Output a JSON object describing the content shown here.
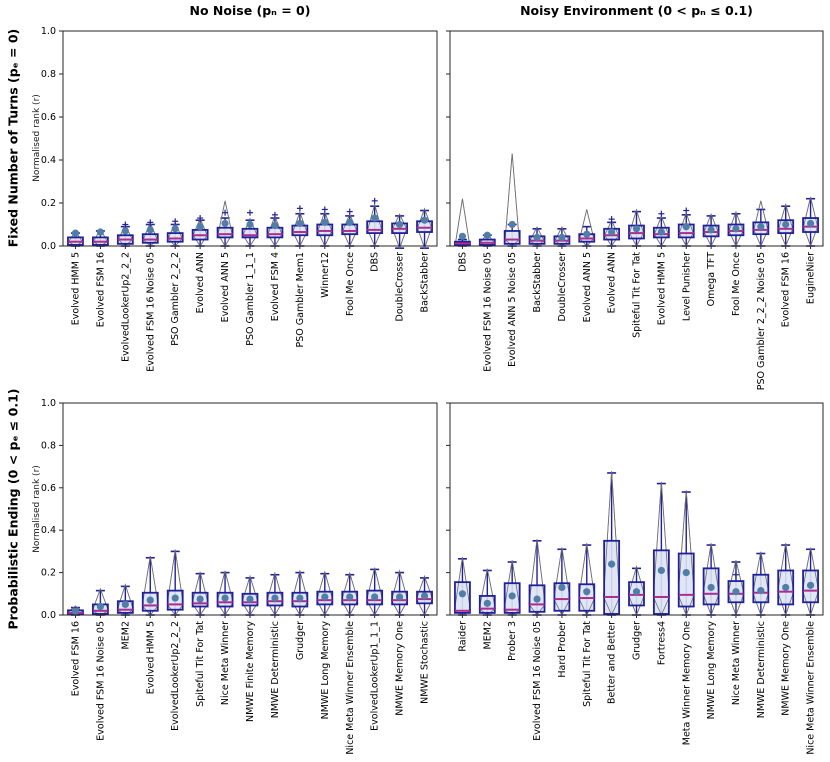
{
  "figure": {
    "column_titles": [
      "No Noise (pₙ = 0)",
      "Noisy Environment (0 < pₙ ≤ 0.1)"
    ],
    "row_titles": [
      "Fixed Number of Turns (pₑ = 0)",
      "Probabilistic Ending (0 < pₑ ≤ 0.1)"
    ],
    "ylabel": "Normalised rank (r)",
    "yticks": [
      "0.0",
      "0.2",
      "0.4",
      "0.6",
      "0.8",
      "1.0"
    ],
    "ylim": [
      0,
      1
    ]
  },
  "colors": {
    "box_edge": "#20209b",
    "box_fill": "#dde3f3",
    "median": "#ad2c8f",
    "mean_dot": "#517ea8",
    "violin_edge": "#707070",
    "violin_fill": "#fbfcff",
    "axis": "#262626",
    "text": "#000000"
  },
  "chart_data": [
    {
      "type": "box",
      "panel": "top-left",
      "column": "No Noise (pₙ = 0)",
      "row": "Fixed Number of Turns (pₑ = 0)",
      "ylim": [
        0,
        1
      ],
      "stats": [
        {
          "label": "Evolved HMM 5",
          "wlo": 0,
          "q1": 0.005,
          "med": 0.02,
          "q3": 0.04,
          "whi": 0.06,
          "mean": 0.06,
          "fliers": []
        },
        {
          "label": "Evolved FSM 16",
          "wlo": 0,
          "q1": 0.005,
          "med": 0.02,
          "q3": 0.04,
          "whi": 0.07,
          "mean": 0.065,
          "fliers": []
        },
        {
          "label": "EvolvedLookerUp2_2_2",
          "wlo": 0,
          "q1": 0.01,
          "med": 0.03,
          "q3": 0.05,
          "whi": 0.09,
          "mean": 0.07,
          "fliers": [
            0.1
          ]
        },
        {
          "label": "Evolved FSM 16 Noise 05",
          "wlo": 0,
          "q1": 0.015,
          "med": 0.03,
          "q3": 0.055,
          "whi": 0.1,
          "mean": 0.075,
          "fliers": [
            0.11
          ]
        },
        {
          "label": "PSO Gambler 2_2_2",
          "wlo": 0,
          "q1": 0.02,
          "med": 0.035,
          "q3": 0.06,
          "whi": 0.1,
          "mean": 0.08,
          "fliers": [
            0.115
          ]
        },
        {
          "label": "Evolved ANN",
          "wlo": 0,
          "q1": 0.03,
          "med": 0.05,
          "q3": 0.075,
          "whi": 0.12,
          "mean": 0.09,
          "fliers": [
            0.13
          ]
        },
        {
          "label": "Evolved ANN 5",
          "wlo": 0,
          "q1": 0.04,
          "med": 0.055,
          "q3": 0.085,
          "whi": 0.13,
          "mean": 0.105,
          "fliers": [
            0.155
          ],
          "spike": 0.21
        },
        {
          "label": "PSO Gambler 1_1_1",
          "wlo": 0,
          "q1": 0.04,
          "med": 0.05,
          "q3": 0.08,
          "whi": 0.12,
          "mean": 0.1,
          "fliers": [
            0.155
          ]
        },
        {
          "label": "Evolved FSM 4",
          "wlo": 0,
          "q1": 0.04,
          "med": 0.055,
          "q3": 0.085,
          "whi": 0.13,
          "mean": 0.095,
          "fliers": [
            0.145
          ]
        },
        {
          "label": "PSO Gambler Mem1",
          "wlo": 0,
          "q1": 0.05,
          "med": 0.065,
          "q3": 0.095,
          "whi": 0.15,
          "mean": 0.105,
          "fliers": [
            0.175
          ]
        },
        {
          "label": "Winner12",
          "wlo": 0,
          "q1": 0.05,
          "med": 0.07,
          "q3": 0.1,
          "whi": 0.15,
          "mean": 0.11,
          "fliers": [
            0.17
          ]
        },
        {
          "label": "Fool Me Once",
          "wlo": 0,
          "q1": 0.055,
          "med": 0.07,
          "q3": 0.1,
          "whi": 0.14,
          "mean": 0.11,
          "fliers": [
            0.16
          ]
        },
        {
          "label": "DBS",
          "wlo": 0,
          "q1": 0.06,
          "med": 0.075,
          "q3": 0.115,
          "whi": 0.185,
          "mean": 0.13,
          "fliers": [
            0.21
          ]
        },
        {
          "label": "DoubleCrosser",
          "wlo": -0.01,
          "q1": 0.06,
          "med": 0.08,
          "q3": 0.105,
          "whi": 0.14,
          "mean": 0.1,
          "fliers": []
        },
        {
          "label": "BackStabber",
          "wlo": -0.01,
          "q1": 0.065,
          "med": 0.085,
          "q3": 0.115,
          "whi": 0.165,
          "mean": 0.12,
          "fliers": []
        }
      ]
    },
    {
      "type": "box",
      "panel": "top-right",
      "column": "Noisy Environment (0 < pₙ ≤ 0.1)",
      "row": "Fixed Number of Turns (pₑ = 0)",
      "ylim": [
        0,
        1
      ],
      "stats": [
        {
          "label": "DBS",
          "wlo": 0,
          "q1": 0.005,
          "med": 0.012,
          "q3": 0.02,
          "whi": 0.03,
          "mean": 0.045,
          "fliers": [],
          "spike": 0.22
        },
        {
          "label": "Evolved FSM 16 Noise 05",
          "wlo": 0,
          "q1": 0.005,
          "med": 0.015,
          "q3": 0.03,
          "whi": 0.05,
          "mean": 0.05,
          "fliers": []
        },
        {
          "label": "Evolved ANN 5 Noise 05",
          "wlo": 0,
          "q1": 0.01,
          "med": 0.03,
          "q3": 0.07,
          "whi": 0.1,
          "mean": 0.1,
          "fliers": [],
          "spike": 0.43
        },
        {
          "label": "BackStabber",
          "wlo": 0,
          "q1": 0.01,
          "med": 0.025,
          "q3": 0.045,
          "whi": 0.08,
          "mean": 0.04,
          "fliers": []
        },
        {
          "label": "DoubleCrosser",
          "wlo": 0,
          "q1": 0.01,
          "med": 0.025,
          "q3": 0.045,
          "whi": 0.08,
          "mean": 0.04,
          "fliers": []
        },
        {
          "label": "Evolved ANN 5",
          "wlo": 0,
          "q1": 0.02,
          "med": 0.035,
          "q3": 0.055,
          "whi": 0.09,
          "mean": 0.055,
          "fliers": [],
          "spike": 0.17
        },
        {
          "label": "Evolved ANN",
          "wlo": 0,
          "q1": 0.03,
          "med": 0.05,
          "q3": 0.08,
          "whi": 0.11,
          "mean": 0.065,
          "fliers": [
            0.125
          ]
        },
        {
          "label": "Spiteful Tit For Tat",
          "wlo": 0,
          "q1": 0.035,
          "med": 0.06,
          "q3": 0.095,
          "whi": 0.16,
          "mean": 0.08,
          "fliers": []
        },
        {
          "label": "Evolved HMM 5",
          "wlo": 0,
          "q1": 0.04,
          "med": 0.055,
          "q3": 0.085,
          "whi": 0.13,
          "mean": 0.065,
          "fliers": [
            0.15
          ]
        },
        {
          "label": "Level Punisher",
          "wlo": 0,
          "q1": 0.04,
          "med": 0.06,
          "q3": 0.1,
          "whi": 0.145,
          "mean": 0.09,
          "fliers": [
            0.165
          ]
        },
        {
          "label": "Omega TFT",
          "wlo": 0,
          "q1": 0.045,
          "med": 0.065,
          "q3": 0.095,
          "whi": 0.14,
          "mean": 0.075,
          "fliers": []
        },
        {
          "label": "Fool Me Once",
          "wlo": 0,
          "q1": 0.05,
          "med": 0.07,
          "q3": 0.1,
          "whi": 0.15,
          "mean": 0.08,
          "fliers": []
        },
        {
          "label": "PSO Gambler 2_2_2 Noise 05",
          "wlo": 0,
          "q1": 0.055,
          "med": 0.075,
          "q3": 0.11,
          "whi": 0.17,
          "mean": 0.09,
          "fliers": [],
          "spike": 0.21
        },
        {
          "label": "Evolved FSM 16",
          "wlo": 0,
          "q1": 0.06,
          "med": 0.08,
          "q3": 0.12,
          "whi": 0.185,
          "mean": 0.1,
          "fliers": []
        },
        {
          "label": "EugineNier",
          "wlo": 0,
          "q1": 0.065,
          "med": 0.09,
          "q3": 0.13,
          "whi": 0.22,
          "mean": 0.105,
          "fliers": []
        }
      ]
    },
    {
      "type": "box",
      "panel": "bottom-left",
      "column": "No Noise (pₙ = 0)",
      "row": "Probabilistic Ending (0 < pₑ ≤ 0.1)",
      "ylim": [
        0,
        1
      ],
      "stats": [
        {
          "label": "Evolved FSM 16",
          "wlo": 0,
          "q1": 0.002,
          "med": 0.01,
          "q3": 0.022,
          "whi": 0.035,
          "mean": 0.018,
          "fliers": []
        },
        {
          "label": "Evolved FSM 16 Noise 05",
          "wlo": 0,
          "q1": 0.005,
          "med": 0.02,
          "q3": 0.05,
          "whi": 0.115,
          "mean": 0.04,
          "fliers": []
        },
        {
          "label": "MEM2",
          "wlo": 0,
          "q1": 0.01,
          "med": 0.025,
          "q3": 0.065,
          "whi": 0.135,
          "mean": 0.05,
          "fliers": []
        },
        {
          "label": "Evolved HMM 5",
          "wlo": 0,
          "q1": 0.02,
          "med": 0.045,
          "q3": 0.105,
          "whi": 0.27,
          "mean": 0.07,
          "fliers": []
        },
        {
          "label": "EvolvedLookerUp2_2_2",
          "wlo": 0,
          "q1": 0.025,
          "med": 0.05,
          "q3": 0.115,
          "whi": 0.3,
          "mean": 0.08,
          "fliers": []
        },
        {
          "label": "Spiteful Tit For Tat",
          "wlo": 0,
          "q1": 0.04,
          "med": 0.055,
          "q3": 0.105,
          "whi": 0.195,
          "mean": 0.075,
          "fliers": []
        },
        {
          "label": "Nice Meta Winner",
          "wlo": 0,
          "q1": 0.04,
          "med": 0.06,
          "q3": 0.105,
          "whi": 0.2,
          "mean": 0.08,
          "fliers": []
        },
        {
          "label": "NMWE Finite Memory",
          "wlo": 0,
          "q1": 0.045,
          "med": 0.06,
          "q3": 0.1,
          "whi": 0.175,
          "mean": 0.075,
          "fliers": []
        },
        {
          "label": "NMWE Deterministic",
          "wlo": 0,
          "q1": 0.045,
          "med": 0.065,
          "q3": 0.105,
          "whi": 0.19,
          "mean": 0.08,
          "fliers": []
        },
        {
          "label": "Grudger",
          "wlo": 0,
          "q1": 0.04,
          "med": 0.065,
          "q3": 0.105,
          "whi": 0.2,
          "mean": 0.08,
          "fliers": []
        },
        {
          "label": "NMWE Long Memory",
          "wlo": 0,
          "q1": 0.05,
          "med": 0.07,
          "q3": 0.11,
          "whi": 0.195,
          "mean": 0.085,
          "fliers": []
        },
        {
          "label": "Nice Meta Winner Ensemble",
          "wlo": 0,
          "q1": 0.05,
          "med": 0.07,
          "q3": 0.11,
          "whi": 0.19,
          "mean": 0.085,
          "fliers": []
        },
        {
          "label": "EvolvedLookerUp1_1_1",
          "wlo": 0,
          "q1": 0.05,
          "med": 0.07,
          "q3": 0.115,
          "whi": 0.215,
          "mean": 0.085,
          "fliers": []
        },
        {
          "label": "NMWE Memory One",
          "wlo": 0,
          "q1": 0.05,
          "med": 0.07,
          "q3": 0.11,
          "whi": 0.2,
          "mean": 0.085,
          "fliers": []
        },
        {
          "label": "NMWE Stochastic",
          "wlo": 0,
          "q1": 0.055,
          "med": 0.075,
          "q3": 0.11,
          "whi": 0.175,
          "mean": 0.09,
          "fliers": []
        }
      ]
    },
    {
      "type": "box",
      "panel": "bottom-right",
      "column": "Noisy Environment (0 < pₙ ≤ 0.1)",
      "row": "Probabilistic Ending (0 < pₑ ≤ 0.1)",
      "ylim": [
        0,
        1
      ],
      "stats": [
        {
          "label": "Raider",
          "wlo": 0,
          "q1": 0.01,
          "med": 0.02,
          "q3": 0.155,
          "whi": 0.265,
          "mean": 0.1,
          "fliers": []
        },
        {
          "label": "MEM2",
          "wlo": 0,
          "q1": 0.01,
          "med": 0.03,
          "q3": 0.09,
          "whi": 0.21,
          "mean": 0.055,
          "fliers": []
        },
        {
          "label": "Prober 3",
          "wlo": 0,
          "q1": 0.01,
          "med": 0.025,
          "q3": 0.15,
          "whi": 0.25,
          "mean": 0.09,
          "fliers": []
        },
        {
          "label": "Evolved FSM 16 Noise 05",
          "wlo": 0,
          "q1": 0.015,
          "med": 0.05,
          "q3": 0.14,
          "whi": 0.35,
          "mean": 0.075,
          "fliers": []
        },
        {
          "label": "Hard Prober",
          "wlo": 0,
          "q1": 0.02,
          "med": 0.075,
          "q3": 0.15,
          "whi": 0.31,
          "mean": 0.13,
          "fliers": []
        },
        {
          "label": "Spiteful Tit For Tat",
          "wlo": 0,
          "q1": 0.02,
          "med": 0.08,
          "q3": 0.145,
          "whi": 0.33,
          "mean": 0.11,
          "fliers": []
        },
        {
          "label": "Better and Better",
          "wlo": 0,
          "q1": 0.005,
          "med": 0.085,
          "q3": 0.35,
          "whi": 0.67,
          "mean": 0.24,
          "fliers": []
        },
        {
          "label": "Grudger",
          "wlo": 0,
          "q1": 0.045,
          "med": 0.095,
          "q3": 0.155,
          "whi": 0.22,
          "mean": 0.11,
          "fliers": []
        },
        {
          "label": "Fortress4",
          "wlo": 0,
          "q1": 0.005,
          "med": 0.085,
          "q3": 0.305,
          "whi": 0.62,
          "mean": 0.21,
          "fliers": []
        },
        {
          "label": "Meta Winner Memory One",
          "wlo": 0,
          "q1": 0.04,
          "med": 0.095,
          "q3": 0.29,
          "whi": 0.58,
          "mean": 0.2,
          "fliers": []
        },
        {
          "label": "NMWE Long Memory",
          "wlo": 0,
          "q1": 0.05,
          "med": 0.1,
          "q3": 0.22,
          "whi": 0.33,
          "mean": 0.13,
          "fliers": []
        },
        {
          "label": "Nice Meta Winner",
          "wlo": 0,
          "q1": 0.06,
          "med": 0.1,
          "q3": 0.16,
          "whi": 0.25,
          "mean": 0.11,
          "fliers": [
            0.19
          ]
        },
        {
          "label": "NMWE Deterministic",
          "wlo": 0,
          "q1": 0.06,
          "med": 0.105,
          "q3": 0.19,
          "whi": 0.29,
          "mean": 0.115,
          "fliers": []
        },
        {
          "label": "NMWE Memory One",
          "wlo": 0,
          "q1": 0.05,
          "med": 0.11,
          "q3": 0.21,
          "whi": 0.33,
          "mean": 0.13,
          "fliers": []
        },
        {
          "label": "Nice Meta Winner Ensemble",
          "wlo": 0,
          "q1": 0.06,
          "med": 0.115,
          "q3": 0.21,
          "whi": 0.31,
          "mean": 0.14,
          "fliers": []
        }
      ]
    }
  ]
}
